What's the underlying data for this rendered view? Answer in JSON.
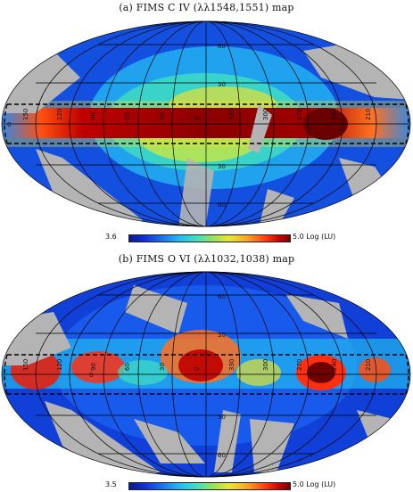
{
  "panel_a": {
    "title": "(a) FIMS C IV (λλ1548,1551) map",
    "colorbar": {
      "min": "3.6",
      "max": "5.0 Log (LU)"
    },
    "lon_labels": [
      "150",
      "120",
      "90",
      "60",
      "30",
      "0",
      "330",
      "300",
      "270",
      "240",
      "210"
    ],
    "lat_labels": {
      "north": "30",
      "south": "30",
      "north60": "60",
      "south60": "60",
      "eq": "0"
    }
  },
  "panel_b": {
    "title": "(b) FIMS O VI (λλ1032,1038) map",
    "colorbar": {
      "min": "3.5",
      "max": "5.0 Log (LU)"
    },
    "lon_labels": [
      "150",
      "120",
      "90",
      "60",
      "30",
      "0",
      "330",
      "300",
      "270",
      "240",
      "210"
    ],
    "lat_labels": {
      "north": "30",
      "south": "30",
      "north60": "60",
      "south60": "60",
      "eq": "0"
    }
  },
  "colors": {
    "low": "#0b1a8a",
    "mid": "#3ee0c0",
    "high": "#7a0000",
    "nodata": "#b4b4b4"
  }
}
